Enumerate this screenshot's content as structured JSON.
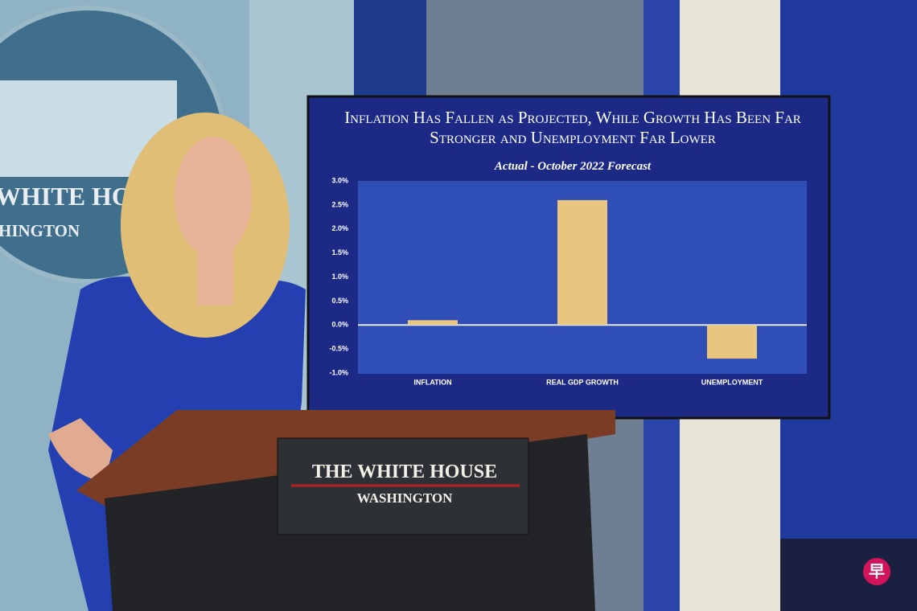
{
  "chart_data": {
    "type": "bar",
    "title": "Inflation Has Fallen as Projected, While Growth Has Been Far Stronger and Unemployment Far Lower",
    "subtitle": "Actual - October 2022 Forecast",
    "categories": [
      "INFLATION",
      "REAL GDP GROWTH",
      "UNEMPLOYMENT"
    ],
    "values": [
      0.1,
      2.6,
      -0.7
    ],
    "color": "#e8c67f",
    "ylim": [
      -1,
      3
    ],
    "yticks": [
      {
        "value": -1,
        "label": "-1.0%"
      },
      {
        "value": -0.5,
        "label": "-0.5%"
      },
      {
        "value": 0,
        "label": "0.0%"
      },
      {
        "value": 0.5,
        "label": "0.5%"
      },
      {
        "value": 1,
        "label": "1.0%"
      },
      {
        "value": 1.5,
        "label": "1.5%"
      },
      {
        "value": 2,
        "label": "2.0%"
      },
      {
        "value": 2.5,
        "label": "2.5%"
      },
      {
        "value": 3,
        "label": "3.0%"
      }
    ]
  },
  "podium": {
    "line1": "THE WHITE HOUSE",
    "line2": "WASHINGTON"
  },
  "wall_sign": {
    "line1": "WHITE HOUS",
    "line2": "HINGTON"
  },
  "watermark": "早"
}
